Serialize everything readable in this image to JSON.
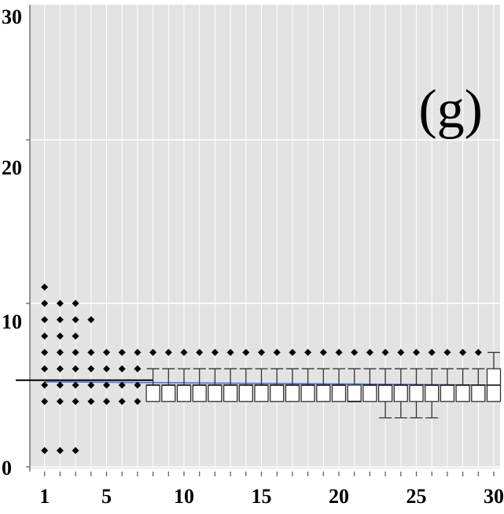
{
  "chart_data": {
    "type": "box",
    "panel_label": "(g)",
    "xlabel": "",
    "ylabel": "",
    "xlim": [
      0,
      30
    ],
    "ylim": [
      0,
      30
    ],
    "x_ticks": [
      1,
      5,
      10,
      15,
      20,
      25,
      30
    ],
    "y_ticks": [
      0,
      10,
      20,
      30
    ],
    "grid": true,
    "colors": {
      "panel_bg": "#e3e3e3",
      "grid": "#ffffff",
      "points": "#000000",
      "median_line": "#4a6fd6",
      "reference_line": "#000000",
      "box_fill": "#ffffff",
      "box_stroke": "#333333"
    },
    "reference_line": {
      "y": 5.3,
      "x_from": 0,
      "x_to": 8
    },
    "median_line": {
      "y_start": 5.2,
      "y_end": 5.0,
      "x_from": 1,
      "x_to": 30
    },
    "points": [
      {
        "x": 1,
        "values": [
          1,
          4,
          5,
          6,
          7,
          8,
          9,
          10,
          11
        ]
      },
      {
        "x": 2,
        "values": [
          1,
          4,
          5,
          6,
          7,
          8,
          9,
          10
        ]
      },
      {
        "x": 3,
        "values": [
          1,
          4,
          5,
          6,
          7,
          8,
          9,
          10
        ]
      },
      {
        "x": 4,
        "values": [
          4,
          5,
          6,
          7,
          9
        ]
      },
      {
        "x": 5,
        "values": [
          4,
          5,
          6,
          7
        ]
      },
      {
        "x": 6,
        "values": [
          4,
          5,
          6,
          7
        ]
      },
      {
        "x": 7,
        "values": [
          4,
          5,
          6,
          7
        ]
      },
      {
        "x": 8,
        "values": [
          7
        ]
      },
      {
        "x": 9,
        "values": [
          7
        ]
      },
      {
        "x": 10,
        "values": [
          7
        ]
      },
      {
        "x": 11,
        "values": [
          7
        ]
      },
      {
        "x": 12,
        "values": [
          7
        ]
      },
      {
        "x": 13,
        "values": [
          7
        ]
      },
      {
        "x": 14,
        "values": [
          7
        ]
      },
      {
        "x": 15,
        "values": [
          7
        ]
      },
      {
        "x": 16,
        "values": [
          7
        ]
      },
      {
        "x": 17,
        "values": [
          7
        ]
      },
      {
        "x": 18,
        "values": [
          7
        ]
      },
      {
        "x": 19,
        "values": [
          7
        ]
      },
      {
        "x": 20,
        "values": [
          7
        ]
      },
      {
        "x": 21,
        "values": [
          7
        ]
      },
      {
        "x": 22,
        "values": [
          7
        ]
      },
      {
        "x": 23,
        "values": [
          7
        ]
      },
      {
        "x": 24,
        "values": [
          7
        ]
      },
      {
        "x": 25,
        "values": [
          7
        ]
      },
      {
        "x": 26,
        "values": [
          7
        ]
      },
      {
        "x": 27,
        "values": [
          7
        ]
      },
      {
        "x": 28,
        "values": [
          7
        ]
      },
      {
        "x": 29,
        "values": [
          7
        ]
      }
    ],
    "boxes": [
      {
        "x": 8,
        "whisker_low": 4,
        "q1": 4,
        "median": 5,
        "q3": 5,
        "whisker_high": 6
      },
      {
        "x": 9,
        "whisker_low": 4,
        "q1": 4,
        "median": 5,
        "q3": 5,
        "whisker_high": 6
      },
      {
        "x": 10,
        "whisker_low": 4,
        "q1": 4,
        "median": 5,
        "q3": 5,
        "whisker_high": 6
      },
      {
        "x": 11,
        "whisker_low": 4,
        "q1": 4,
        "median": 5,
        "q3": 5,
        "whisker_high": 6
      },
      {
        "x": 12,
        "whisker_low": 4,
        "q1": 4,
        "median": 5,
        "q3": 5,
        "whisker_high": 6
      },
      {
        "x": 13,
        "whisker_low": 4,
        "q1": 4,
        "median": 5,
        "q3": 5,
        "whisker_high": 6
      },
      {
        "x": 14,
        "whisker_low": 4,
        "q1": 4,
        "median": 5,
        "q3": 5,
        "whisker_high": 6
      },
      {
        "x": 15,
        "whisker_low": 4,
        "q1": 4,
        "median": 5,
        "q3": 5,
        "whisker_high": 6
      },
      {
        "x": 16,
        "whisker_low": 4,
        "q1": 4,
        "median": 5,
        "q3": 5,
        "whisker_high": 6
      },
      {
        "x": 17,
        "whisker_low": 4,
        "q1": 4,
        "median": 5,
        "q3": 5,
        "whisker_high": 6
      },
      {
        "x": 18,
        "whisker_low": 4,
        "q1": 4,
        "median": 5,
        "q3": 5,
        "whisker_high": 6
      },
      {
        "x": 19,
        "whisker_low": 4,
        "q1": 4,
        "median": 5,
        "q3": 5,
        "whisker_high": 6
      },
      {
        "x": 20,
        "whisker_low": 4,
        "q1": 4,
        "median": 5,
        "q3": 5,
        "whisker_high": 6
      },
      {
        "x": 21,
        "whisker_low": 4,
        "q1": 4,
        "median": 4,
        "q3": 5,
        "whisker_high": 6
      },
      {
        "x": 22,
        "whisker_low": 4,
        "q1": 4,
        "median": 5,
        "q3": 5,
        "whisker_high": 6
      },
      {
        "x": 23,
        "whisker_low": 3,
        "q1": 4,
        "median": 5,
        "q3": 5,
        "whisker_high": 6
      },
      {
        "x": 24,
        "whisker_low": 3,
        "q1": 4,
        "median": 5,
        "q3": 5,
        "whisker_high": 6
      },
      {
        "x": 25,
        "whisker_low": 3,
        "q1": 4,
        "median": 5,
        "q3": 5,
        "whisker_high": 6
      },
      {
        "x": 26,
        "whisker_low": 3,
        "q1": 4,
        "median": 5,
        "q3": 5,
        "whisker_high": 6
      },
      {
        "x": 27,
        "whisker_low": 4,
        "q1": 4,
        "median": 5,
        "q3": 5,
        "whisker_high": 6
      },
      {
        "x": 28,
        "whisker_low": 4,
        "q1": 4,
        "median": 5,
        "q3": 5,
        "whisker_high": 6
      },
      {
        "x": 29,
        "whisker_low": 4,
        "q1": 4,
        "median": 5,
        "q3": 5,
        "whisker_high": 6
      },
      {
        "x": 30,
        "whisker_low": 4,
        "q1": 4,
        "median": 5,
        "q3": 6,
        "whisker_high": 7
      }
    ]
  }
}
